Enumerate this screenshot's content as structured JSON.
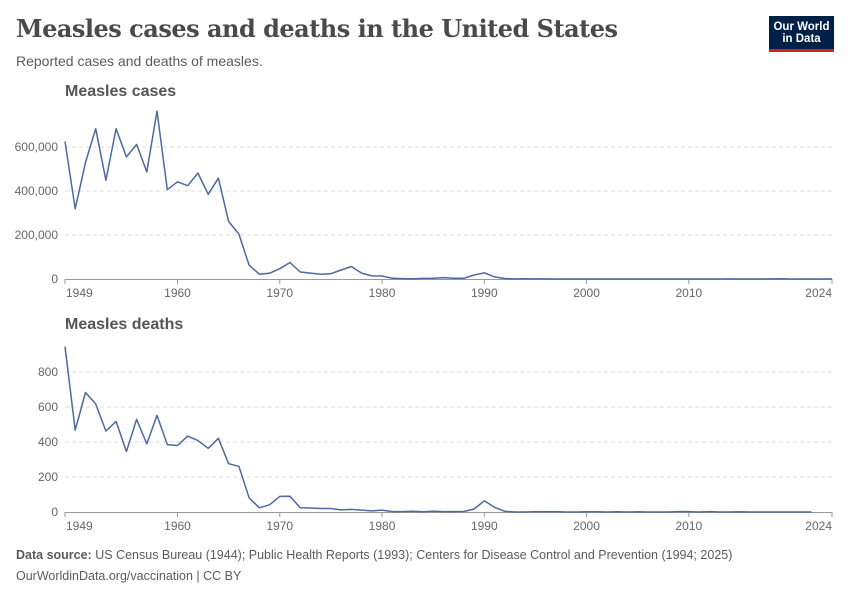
{
  "header": {
    "title": "Measles cases and deaths in the United States",
    "subtitle": "Reported cases and deaths of measles.",
    "logo": "Our World in Data"
  },
  "footer": {
    "source_label": "Data source:",
    "source_text": "US Census Bureau (1944); Public Health Reports (1993); Centers for Disease Control and Prevention (1994; 2025)",
    "url": "OurWorldinData.org/vaccination | CC BY"
  },
  "colors": {
    "line": "#4c6a9c",
    "grid": "#dddddd",
    "logo_bg": "#002147",
    "logo_bar": "#ce261e"
  },
  "chart_data": [
    {
      "type": "line",
      "title": "Measles cases",
      "xlim": [
        1949,
        2024
      ],
      "ylim": [
        0,
        800000
      ],
      "xticks": [
        "1949",
        "1960",
        "1970",
        "1980",
        "1990",
        "2000",
        "2010",
        "2024"
      ],
      "yticks": [
        "0",
        "200,000",
        "400,000",
        "600,000"
      ],
      "ytick_values": [
        0,
        200000,
        400000,
        600000
      ],
      "grid": "horizontal-dashed",
      "x": [
        1949,
        1950,
        1951,
        1952,
        1953,
        1954,
        1955,
        1956,
        1957,
        1958,
        1959,
        1960,
        1961,
        1962,
        1963,
        1964,
        1965,
        1966,
        1967,
        1968,
        1969,
        1970,
        1971,
        1972,
        1973,
        1974,
        1975,
        1976,
        1977,
        1978,
        1979,
        1980,
        1981,
        1982,
        1983,
        1984,
        1985,
        1986,
        1987,
        1988,
        1989,
        1990,
        1991,
        1992,
        1993,
        1994,
        1995,
        1996,
        1997,
        1998,
        1999,
        2000,
        2001,
        2002,
        2003,
        2004,
        2005,
        2006,
        2007,
        2008,
        2009,
        2010,
        2011,
        2012,
        2013,
        2014,
        2015,
        2016,
        2017,
        2018,
        2019,
        2020,
        2021,
        2022,
        2023,
        2024
      ],
      "values": [
        625000,
        319000,
        530000,
        683000,
        449000,
        683000,
        555000,
        612000,
        487000,
        763000,
        406000,
        442000,
        424000,
        482000,
        385000,
        458000,
        262000,
        204000,
        63000,
        22000,
        26000,
        47000,
        75000,
        32000,
        27000,
        22000,
        24000,
        41000,
        57000,
        27000,
        14000,
        13500,
        3000,
        1700,
        1500,
        2600,
        2800,
        6300,
        3700,
        3400,
        18000,
        28000,
        9600,
        2200,
        312,
        963,
        309,
        508,
        138,
        100,
        100,
        86,
        116,
        44,
        56,
        37,
        66,
        55,
        43,
        140,
        71,
        63,
        220,
        55,
        187,
        667,
        188,
        86,
        120,
        375,
        1274,
        13,
        49,
        121,
        59,
        285
      ]
    },
    {
      "type": "line",
      "title": "Measles deaths",
      "xlim": [
        1949,
        2024
      ],
      "ylim": [
        0,
        1000
      ],
      "xticks": [
        "1949",
        "1960",
        "1970",
        "1980",
        "1990",
        "2000",
        "2010",
        "2024"
      ],
      "yticks": [
        "0",
        "200",
        "400",
        "600",
        "800"
      ],
      "ytick_values": [
        0,
        200,
        400,
        600,
        800
      ],
      "grid": "horizontal-dashed",
      "x": [
        1949,
        1950,
        1951,
        1952,
        1953,
        1954,
        1955,
        1956,
        1957,
        1958,
        1959,
        1960,
        1961,
        1962,
        1963,
        1964,
        1965,
        1966,
        1967,
        1968,
        1969,
        1970,
        1971,
        1972,
        1973,
        1974,
        1975,
        1976,
        1977,
        1978,
        1979,
        1980,
        1981,
        1982,
        1983,
        1984,
        1985,
        1986,
        1987,
        1988,
        1989,
        1990,
        1991,
        1992,
        1993,
        1994,
        1995,
        1996,
        1997,
        1998,
        1999,
        2000,
        2001,
        2002,
        2003,
        2004,
        2005,
        2006,
        2007,
        2008,
        2009,
        2010,
        2011,
        2012,
        2013,
        2014,
        2015,
        2016,
        2017,
        2018,
        2019,
        2020,
        2021,
        2022
      ],
      "values": [
        945,
        468,
        683,
        618,
        462,
        518,
        345,
        530,
        389,
        552,
        385,
        380,
        434,
        408,
        364,
        421,
        276,
        261,
        81,
        24,
        41,
        89,
        90,
        24,
        23,
        20,
        20,
        12,
        15,
        11,
        6,
        11,
        2,
        2,
        4,
        1,
        4,
        2,
        2,
        3,
        17,
        64,
        27,
        4,
        0,
        0,
        2,
        1,
        2,
        0,
        0,
        1,
        1,
        0,
        1,
        0,
        1,
        0,
        0,
        0,
        2,
        2,
        0,
        2,
        0,
        0,
        1,
        0,
        0,
        0,
        0,
        0,
        0,
        0
      ]
    }
  ]
}
